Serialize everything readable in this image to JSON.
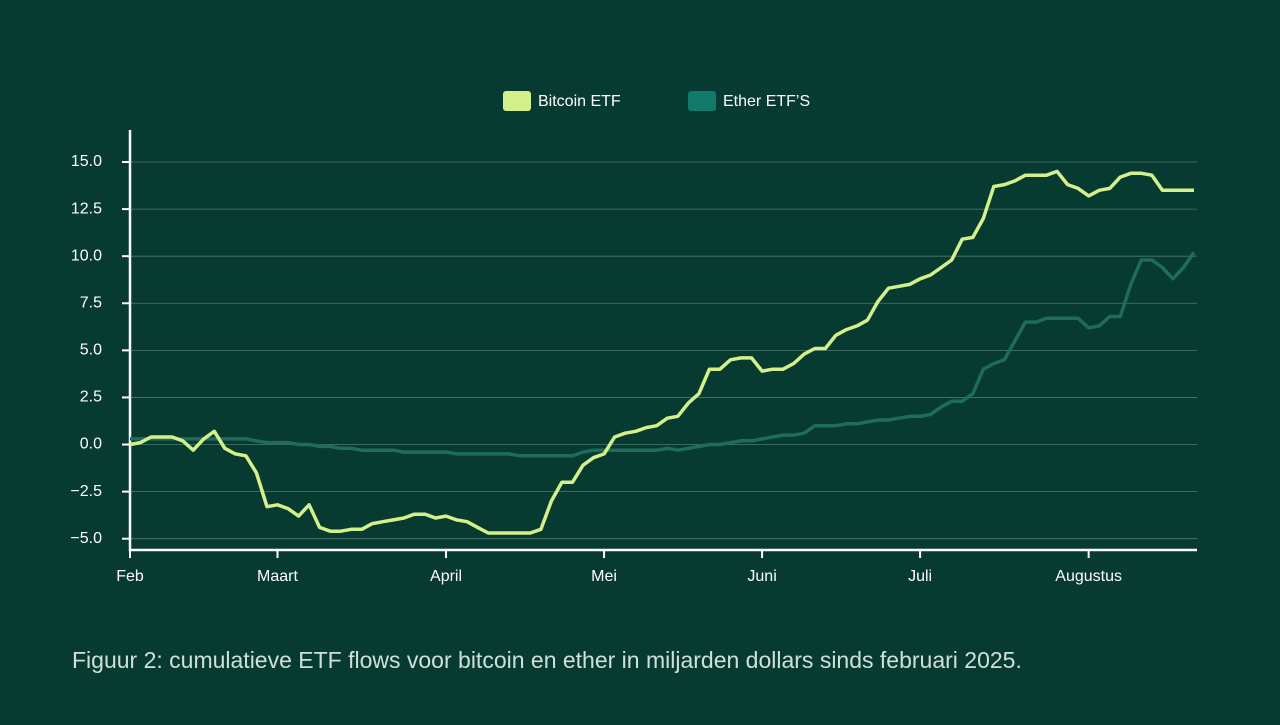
{
  "chart_data": {
    "type": "line",
    "caption": "Figuur 2: cumulatieve ETF flows voor bitcoin en ether in miljarden dollars sinds februari 2025.",
    "categories": [
      "Feb",
      null,
      null,
      null,
      null,
      null,
      null,
      null,
      null,
      null,
      null,
      null,
      null,
      null,
      "Maart",
      null,
      null,
      null,
      null,
      null,
      null,
      null,
      null,
      null,
      null,
      null,
      null,
      null,
      null,
      null,
      "April",
      null,
      null,
      null,
      null,
      null,
      null,
      null,
      null,
      null,
      null,
      null,
      null,
      null,
      null,
      "Mei",
      null,
      null,
      null,
      null,
      null,
      null,
      null,
      null,
      null,
      null,
      null,
      null,
      null,
      null,
      "Juni",
      null,
      null,
      null,
      null,
      null,
      null,
      null,
      null,
      null,
      null,
      null,
      null,
      null,
      null,
      "Juli",
      null,
      null,
      null,
      null,
      null,
      null,
      null,
      null,
      null,
      null,
      null,
      null,
      null,
      null,
      null,
      "Augustus",
      null,
      null,
      null,
      null,
      null,
      null,
      null,
      null,
      null,
      null
    ],
    "series": [
      {
        "name": "Bitcoin ETF",
        "color": "#d4f08a",
        "values": [
          0,
          0.1,
          0.4,
          0.4,
          0.4,
          0.2,
          -0.3,
          0.3,
          0.7,
          -0.2,
          -0.5,
          -0.6,
          -1.5,
          -3.3,
          -3.2,
          -3.4,
          -3.8,
          -3.2,
          -4.4,
          -4.6,
          -4.6,
          -4.5,
          -4.5,
          -4.2,
          -4.1,
          -4.0,
          -3.9,
          -3.7,
          -3.7,
          -3.9,
          -3.8,
          -4.0,
          -4.1,
          -4.4,
          -4.7,
          -4.7,
          -4.7,
          -4.7,
          -4.7,
          -4.5,
          -3.0,
          -2.0,
          -2.0,
          -1.1,
          -0.7,
          -0.5,
          0.4,
          0.6,
          0.7,
          0.9,
          1.0,
          1.4,
          1.5,
          2.2,
          2.7,
          4.0,
          4.0,
          4.5,
          4.6,
          4.6,
          3.9,
          4.0,
          4.0,
          4.3,
          4.8,
          5.1,
          5.1,
          5.8,
          6.1,
          6.3,
          6.6,
          7.6,
          8.3,
          8.4,
          8.5,
          8.8,
          9.0,
          9.4,
          9.8,
          10.9,
          11.0,
          12.0,
          13.7,
          13.8,
          14.0,
          14.3,
          14.3,
          14.3,
          14.5,
          13.8,
          13.6,
          13.2,
          13.5,
          13.6,
          14.2,
          14.4,
          14.4,
          14.3,
          13.5,
          13.5,
          13.5,
          13.5
        ]
      },
      {
        "name": "Ether ETF’S",
        "color": "#1f6b5c",
        "legend_color": "#127a6a",
        "values": [
          0.3,
          0.3,
          0.3,
          0.3,
          0.3,
          0.3,
          0.3,
          0.3,
          0.3,
          0.3,
          0.3,
          0.3,
          0.2,
          0.1,
          0.1,
          0.1,
          0.0,
          0.0,
          -0.1,
          -0.1,
          -0.2,
          -0.2,
          -0.3,
          -0.3,
          -0.3,
          -0.3,
          -0.4,
          -0.4,
          -0.4,
          -0.4,
          -0.4,
          -0.5,
          -0.5,
          -0.5,
          -0.5,
          -0.5,
          -0.5,
          -0.6,
          -0.6,
          -0.6,
          -0.6,
          -0.6,
          -0.6,
          -0.4,
          -0.3,
          -0.3,
          -0.3,
          -0.3,
          -0.3,
          -0.3,
          -0.3,
          -0.2,
          -0.3,
          -0.2,
          -0.1,
          0.0,
          0.0,
          0.1,
          0.2,
          0.2,
          0.3,
          0.4,
          0.5,
          0.5,
          0.6,
          1.0,
          1.0,
          1.0,
          1.1,
          1.1,
          1.2,
          1.3,
          1.3,
          1.4,
          1.5,
          1.5,
          1.6,
          2.0,
          2.3,
          2.3,
          2.7,
          4.0,
          4.3,
          4.5,
          5.5,
          6.5,
          6.5,
          6.7,
          6.7,
          6.7,
          6.7,
          6.2,
          6.3,
          6.8,
          6.8,
          8.5,
          9.8,
          9.8,
          9.4,
          8.8,
          9.4,
          10.2
        ]
      }
    ],
    "ylim": [
      -5.6,
      16.7
    ],
    "yticks": [
      {
        "value": -5,
        "label": "−5.0"
      },
      {
        "value": -2.5,
        "label": "−2.5"
      },
      {
        "value": 0,
        "label": "0.0"
      },
      {
        "value": 2.5,
        "label": "2.5"
      },
      {
        "value": 5,
        "label": "5.0"
      },
      {
        "value": 7.5,
        "label": "7.5"
      },
      {
        "value": 10,
        "label": "10.0"
      },
      {
        "value": 12.5,
        "label": "12.5"
      },
      {
        "value": 15,
        "label": "15.0"
      }
    ],
    "grid": true,
    "legend": "top"
  }
}
